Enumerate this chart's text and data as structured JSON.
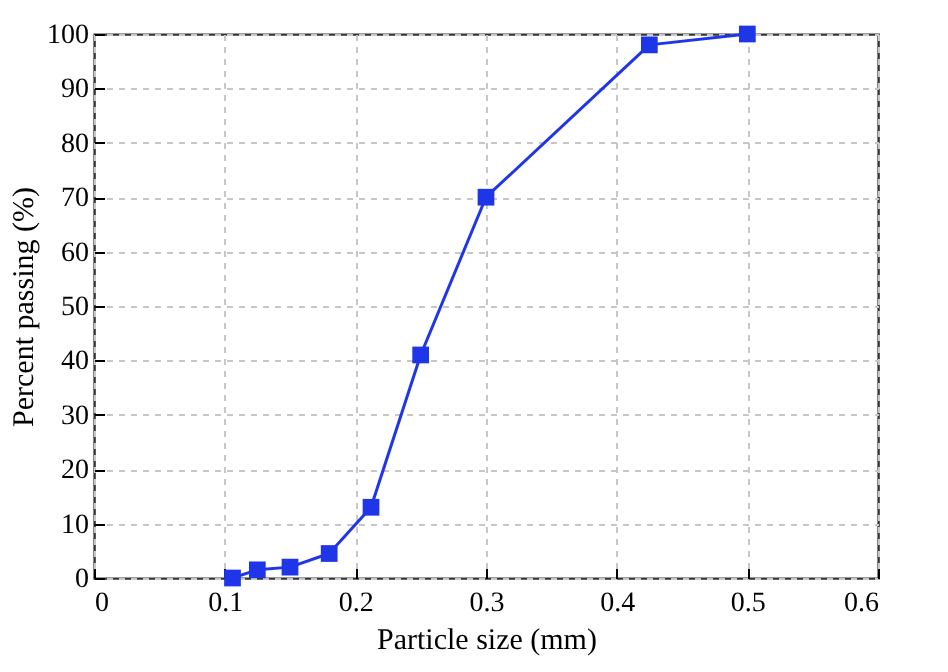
{
  "chart_data": {
    "type": "line",
    "xlabel": "Particle size (mm)",
    "ylabel": "Percent passing (%)",
    "x": [
      0.106,
      0.125,
      0.15,
      0.18,
      0.212,
      0.25,
      0.3,
      0.425,
      0.5
    ],
    "series": [
      {
        "color": "#1f35e8",
        "values": [
          0,
          1.5,
          2,
          4.5,
          13,
          41,
          70,
          98,
          100
        ]
      }
    ],
    "xlim": [
      0,
      0.6
    ],
    "xticks": [
      0,
      0.1,
      0.2,
      0.3,
      0.4,
      0.5,
      0.6
    ],
    "ylim": [
      0,
      100
    ],
    "yticks": [
      0,
      10,
      20,
      30,
      40,
      50,
      60,
      70,
      80,
      90,
      100
    ],
    "grid": true,
    "marker": "square",
    "line_style": "solid"
  }
}
